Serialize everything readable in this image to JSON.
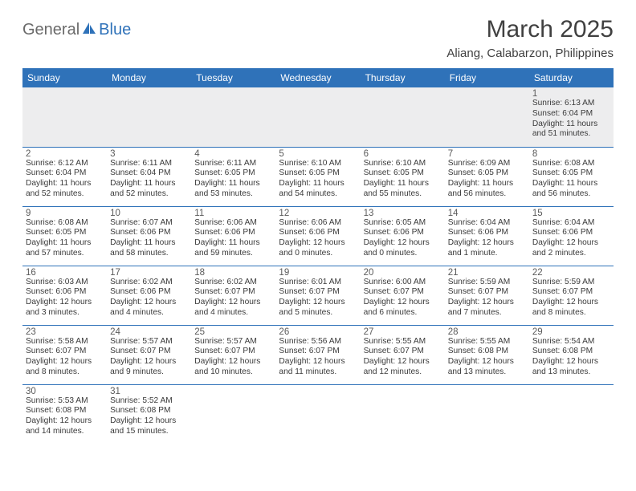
{
  "brand": {
    "part1": "General",
    "part2": "Blue"
  },
  "title": "March 2025",
  "location": "Aliang, Calabarzon, Philippines",
  "colors": {
    "header_bg": "#2f72b9",
    "header_text": "#ffffff",
    "border": "#2f72b9",
    "first_row_bg": "#ededee",
    "title_color": "#404040",
    "body_text": "#3a3a3a",
    "logo_gray": "#6a6a6a",
    "logo_blue": "#2f72b9"
  },
  "typography": {
    "title_fontsize": 30,
    "location_fontsize": 15,
    "header_fontsize": 12,
    "daynum_fontsize": 11.5,
    "cell_fontsize": 10.2
  },
  "days": [
    "Sunday",
    "Monday",
    "Tuesday",
    "Wednesday",
    "Thursday",
    "Friday",
    "Saturday"
  ],
  "weeks": [
    [
      null,
      null,
      null,
      null,
      null,
      null,
      {
        "n": "1",
        "sr": "Sunrise: 6:13 AM",
        "ss": "Sunset: 6:04 PM",
        "d1": "Daylight: 11 hours",
        "d2": "and 51 minutes."
      }
    ],
    [
      {
        "n": "2",
        "sr": "Sunrise: 6:12 AM",
        "ss": "Sunset: 6:04 PM",
        "d1": "Daylight: 11 hours",
        "d2": "and 52 minutes."
      },
      {
        "n": "3",
        "sr": "Sunrise: 6:11 AM",
        "ss": "Sunset: 6:04 PM",
        "d1": "Daylight: 11 hours",
        "d2": "and 52 minutes."
      },
      {
        "n": "4",
        "sr": "Sunrise: 6:11 AM",
        "ss": "Sunset: 6:05 PM",
        "d1": "Daylight: 11 hours",
        "d2": "and 53 minutes."
      },
      {
        "n": "5",
        "sr": "Sunrise: 6:10 AM",
        "ss": "Sunset: 6:05 PM",
        "d1": "Daylight: 11 hours",
        "d2": "and 54 minutes."
      },
      {
        "n": "6",
        "sr": "Sunrise: 6:10 AM",
        "ss": "Sunset: 6:05 PM",
        "d1": "Daylight: 11 hours",
        "d2": "and 55 minutes."
      },
      {
        "n": "7",
        "sr": "Sunrise: 6:09 AM",
        "ss": "Sunset: 6:05 PM",
        "d1": "Daylight: 11 hours",
        "d2": "and 56 minutes."
      },
      {
        "n": "8",
        "sr": "Sunrise: 6:08 AM",
        "ss": "Sunset: 6:05 PM",
        "d1": "Daylight: 11 hours",
        "d2": "and 56 minutes."
      }
    ],
    [
      {
        "n": "9",
        "sr": "Sunrise: 6:08 AM",
        "ss": "Sunset: 6:05 PM",
        "d1": "Daylight: 11 hours",
        "d2": "and 57 minutes."
      },
      {
        "n": "10",
        "sr": "Sunrise: 6:07 AM",
        "ss": "Sunset: 6:06 PM",
        "d1": "Daylight: 11 hours",
        "d2": "and 58 minutes."
      },
      {
        "n": "11",
        "sr": "Sunrise: 6:06 AM",
        "ss": "Sunset: 6:06 PM",
        "d1": "Daylight: 11 hours",
        "d2": "and 59 minutes."
      },
      {
        "n": "12",
        "sr": "Sunrise: 6:06 AM",
        "ss": "Sunset: 6:06 PM",
        "d1": "Daylight: 12 hours",
        "d2": "and 0 minutes."
      },
      {
        "n": "13",
        "sr": "Sunrise: 6:05 AM",
        "ss": "Sunset: 6:06 PM",
        "d1": "Daylight: 12 hours",
        "d2": "and 0 minutes."
      },
      {
        "n": "14",
        "sr": "Sunrise: 6:04 AM",
        "ss": "Sunset: 6:06 PM",
        "d1": "Daylight: 12 hours",
        "d2": "and 1 minute."
      },
      {
        "n": "15",
        "sr": "Sunrise: 6:04 AM",
        "ss": "Sunset: 6:06 PM",
        "d1": "Daylight: 12 hours",
        "d2": "and 2 minutes."
      }
    ],
    [
      {
        "n": "16",
        "sr": "Sunrise: 6:03 AM",
        "ss": "Sunset: 6:06 PM",
        "d1": "Daylight: 12 hours",
        "d2": "and 3 minutes."
      },
      {
        "n": "17",
        "sr": "Sunrise: 6:02 AM",
        "ss": "Sunset: 6:06 PM",
        "d1": "Daylight: 12 hours",
        "d2": "and 4 minutes."
      },
      {
        "n": "18",
        "sr": "Sunrise: 6:02 AM",
        "ss": "Sunset: 6:07 PM",
        "d1": "Daylight: 12 hours",
        "d2": "and 4 minutes."
      },
      {
        "n": "19",
        "sr": "Sunrise: 6:01 AM",
        "ss": "Sunset: 6:07 PM",
        "d1": "Daylight: 12 hours",
        "d2": "and 5 minutes."
      },
      {
        "n": "20",
        "sr": "Sunrise: 6:00 AM",
        "ss": "Sunset: 6:07 PM",
        "d1": "Daylight: 12 hours",
        "d2": "and 6 minutes."
      },
      {
        "n": "21",
        "sr": "Sunrise: 5:59 AM",
        "ss": "Sunset: 6:07 PM",
        "d1": "Daylight: 12 hours",
        "d2": "and 7 minutes."
      },
      {
        "n": "22",
        "sr": "Sunrise: 5:59 AM",
        "ss": "Sunset: 6:07 PM",
        "d1": "Daylight: 12 hours",
        "d2": "and 8 minutes."
      }
    ],
    [
      {
        "n": "23",
        "sr": "Sunrise: 5:58 AM",
        "ss": "Sunset: 6:07 PM",
        "d1": "Daylight: 12 hours",
        "d2": "and 8 minutes."
      },
      {
        "n": "24",
        "sr": "Sunrise: 5:57 AM",
        "ss": "Sunset: 6:07 PM",
        "d1": "Daylight: 12 hours",
        "d2": "and 9 minutes."
      },
      {
        "n": "25",
        "sr": "Sunrise: 5:57 AM",
        "ss": "Sunset: 6:07 PM",
        "d1": "Daylight: 12 hours",
        "d2": "and 10 minutes."
      },
      {
        "n": "26",
        "sr": "Sunrise: 5:56 AM",
        "ss": "Sunset: 6:07 PM",
        "d1": "Daylight: 12 hours",
        "d2": "and 11 minutes."
      },
      {
        "n": "27",
        "sr": "Sunrise: 5:55 AM",
        "ss": "Sunset: 6:07 PM",
        "d1": "Daylight: 12 hours",
        "d2": "and 12 minutes."
      },
      {
        "n": "28",
        "sr": "Sunrise: 5:55 AM",
        "ss": "Sunset: 6:08 PM",
        "d1": "Daylight: 12 hours",
        "d2": "and 13 minutes."
      },
      {
        "n": "29",
        "sr": "Sunrise: 5:54 AM",
        "ss": "Sunset: 6:08 PM",
        "d1": "Daylight: 12 hours",
        "d2": "and 13 minutes."
      }
    ],
    [
      {
        "n": "30",
        "sr": "Sunrise: 5:53 AM",
        "ss": "Sunset: 6:08 PM",
        "d1": "Daylight: 12 hours",
        "d2": "and 14 minutes."
      },
      {
        "n": "31",
        "sr": "Sunrise: 5:52 AM",
        "ss": "Sunset: 6:08 PM",
        "d1": "Daylight: 12 hours",
        "d2": "and 15 minutes."
      },
      null,
      null,
      null,
      null,
      null
    ]
  ]
}
